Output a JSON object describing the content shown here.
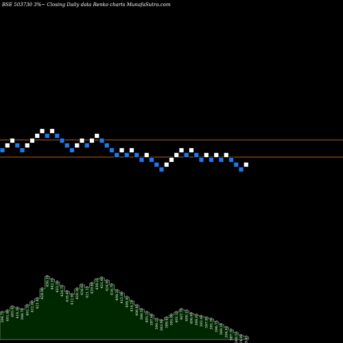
{
  "header": {
    "left": "BSE 503730  3%~  Closing Daily data  Renko  charts MunafaSutra.com"
  },
  "colors": {
    "background": "#000000",
    "up_brick": "#ffffff",
    "down_brick": "#1e78f0",
    "brick_border": "#000000",
    "reference_line": "#b4641e",
    "volume_fill": "#002800",
    "volume_outline": "#c8c8c8",
    "label": "#ffffff"
  },
  "chart_data": {
    "type": "renko",
    "reference_lines": [
      {
        "value": 1.0
      },
      {
        "value": 0.0
      }
    ],
    "bricks": [
      {
        "dir": "down",
        "level": 0
      },
      {
        "dir": "up",
        "level": 1
      },
      {
        "dir": "up",
        "level": 2
      },
      {
        "dir": "down",
        "level": 1
      },
      {
        "dir": "down",
        "level": 0
      },
      {
        "dir": "up",
        "level": 1
      },
      {
        "dir": "up",
        "level": 2
      },
      {
        "dir": "up",
        "level": 3
      },
      {
        "dir": "up",
        "level": 4
      },
      {
        "dir": "down",
        "level": 3
      },
      {
        "dir": "up",
        "level": 4
      },
      {
        "dir": "down",
        "level": 3
      },
      {
        "dir": "down",
        "level": 2
      },
      {
        "dir": "down",
        "level": 1
      },
      {
        "dir": "down",
        "level": 0
      },
      {
        "dir": "up",
        "level": 1
      },
      {
        "dir": "up",
        "level": 2
      },
      {
        "dir": "down",
        "level": 1
      },
      {
        "dir": "up",
        "level": 2
      },
      {
        "dir": "up",
        "level": 3
      },
      {
        "dir": "down",
        "level": 2
      },
      {
        "dir": "down",
        "level": 1
      },
      {
        "dir": "down",
        "level": 0
      },
      {
        "dir": "down",
        "level": -1
      },
      {
        "dir": "up",
        "level": 0
      },
      {
        "dir": "down",
        "level": -1
      },
      {
        "dir": "up",
        "level": 0
      },
      {
        "dir": "down",
        "level": -1
      },
      {
        "dir": "down",
        "level": -2
      },
      {
        "dir": "up",
        "level": -1
      },
      {
        "dir": "down",
        "level": -2
      },
      {
        "dir": "down",
        "level": -3
      },
      {
        "dir": "down",
        "level": -4
      },
      {
        "dir": "up",
        "level": -3
      },
      {
        "dir": "up",
        "level": -2
      },
      {
        "dir": "up",
        "level": -1
      },
      {
        "dir": "up",
        "level": 0
      },
      {
        "dir": "down",
        "level": -1
      },
      {
        "dir": "up",
        "level": 0
      },
      {
        "dir": "down",
        "level": -1
      },
      {
        "dir": "down",
        "level": -2
      },
      {
        "dir": "up",
        "level": -1
      },
      {
        "dir": "down",
        "level": -2
      },
      {
        "dir": "up",
        "level": -1
      },
      {
        "dir": "down",
        "level": -2
      },
      {
        "dir": "up",
        "level": -1
      },
      {
        "dir": "down",
        "level": -2
      },
      {
        "dir": "down",
        "level": -3
      },
      {
        "dir": "down",
        "level": -4
      },
      {
        "dir": "up",
        "level": -3
      }
    ],
    "volume": [
      {
        "value": 40,
        "label": "394.75"
      },
      {
        "value": 42,
        "label": "401.80"
      },
      {
        "value": 48,
        "label": "405.45"
      },
      {
        "value": 46,
        "label": "410.30"
      },
      {
        "value": 44,
        "label": "398.70"
      },
      {
        "value": 50,
        "label": "402.35"
      },
      {
        "value": 55,
        "label": "412.60"
      },
      {
        "value": 60,
        "label": "421.85"
      },
      {
        "value": 74,
        "label": "428.90"
      },
      {
        "value": 92,
        "label": "436.10"
      },
      {
        "value": 88,
        "label": "442.55"
      },
      {
        "value": 84,
        "label": "433.20"
      },
      {
        "value": 78,
        "label": "426.75"
      },
      {
        "value": 70,
        "label": "418.40"
      },
      {
        "value": 66,
        "label": "412.95"
      },
      {
        "value": 74,
        "label": "420.30"
      },
      {
        "value": 80,
        "label": "428.65"
      },
      {
        "value": 76,
        "label": "421.15"
      },
      {
        "value": 82,
        "label": "429.80"
      },
      {
        "value": 88,
        "label": "438.25"
      },
      {
        "value": 90,
        "label": "431.60"
      },
      {
        "value": 86,
        "label": "424.05"
      },
      {
        "value": 80,
        "label": "416.70"
      },
      {
        "value": 72,
        "label": "409.35"
      },
      {
        "value": 68,
        "label": "415.90"
      },
      {
        "value": 62,
        "label": "408.45"
      },
      {
        "value": 56,
        "label": "414.20"
      },
      {
        "value": 50,
        "label": "406.85"
      },
      {
        "value": 44,
        "label": "399.50"
      },
      {
        "value": 40,
        "label": "405.15"
      },
      {
        "value": 36,
        "label": "397.60"
      },
      {
        "value": 30,
        "label": "390.25"
      },
      {
        "value": 28,
        "label": "383.90"
      },
      {
        "value": 32,
        "label": "389.45"
      },
      {
        "value": 36,
        "label": "395.80"
      },
      {
        "value": 40,
        "label": "401.35"
      },
      {
        "value": 44,
        "label": "407.70"
      },
      {
        "value": 42,
        "label": "400.15"
      },
      {
        "value": 38,
        "label": "406.60"
      },
      {
        "value": 36,
        "label": "399.05"
      },
      {
        "value": 34,
        "label": "392.40"
      },
      {
        "value": 32,
        "label": "397.85"
      },
      {
        "value": 30,
        "label": "391.30"
      },
      {
        "value": 26,
        "label": "396.75"
      },
      {
        "value": 22,
        "label": "389.20"
      },
      {
        "value": 18,
        "label": "394.65"
      },
      {
        "value": 14,
        "label": "387.10"
      },
      {
        "value": 10,
        "label": "380.55"
      },
      {
        "value": 6,
        "label": "374.00"
      },
      {
        "value": 4,
        "label": "379.45"
      }
    ]
  }
}
